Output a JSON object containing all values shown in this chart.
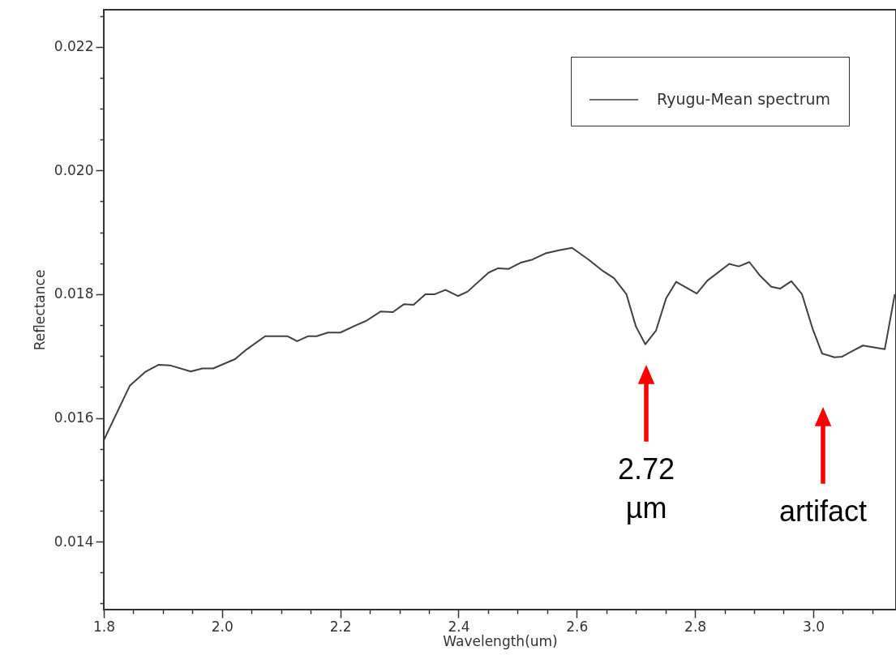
{
  "chart_data": {
    "type": "line",
    "xlabel": "Wavelength(um)",
    "ylabel": "Reflectance",
    "xlim": [
      1.8,
      3.14
    ],
    "ylim": [
      0.0129,
      0.0226
    ],
    "xticks": [
      1.8,
      {
        "value": 1.85,
        "label": null
      },
      {
        "value": 1.9,
        "label": null
      },
      {
        "value": 1.95,
        "label": null
      },
      {
        "value": 2,
        "label": "2.0"
      },
      {
        "value": 2.05,
        "label": null
      },
      {
        "value": 2.1,
        "label": null
      },
      {
        "value": 2.15,
        "label": null
      },
      2.2,
      {
        "value": 2.25,
        "label": null
      },
      {
        "value": 2.3,
        "label": null
      },
      {
        "value": 2.35,
        "label": null
      },
      2.4,
      {
        "value": 2.45,
        "label": null
      },
      {
        "value": 2.5,
        "label": null
      },
      {
        "value": 2.55,
        "label": null
      },
      2.6,
      {
        "value": 2.65,
        "label": null
      },
      {
        "value": 2.7,
        "label": null
      },
      {
        "value": 2.75,
        "label": null
      },
      2.8,
      {
        "value": 2.85,
        "label": null
      },
      {
        "value": 2.9,
        "label": null
      },
      {
        "value": 2.95,
        "label": null
      },
      {
        "value": 3,
        "label": "3.0"
      },
      {
        "value": 3.05,
        "label": null
      },
      {
        "value": 3.1,
        "label": null
      }
    ],
    "yticks": [
      {
        "value": 0.013,
        "label": null
      },
      {
        "value": 0.0135,
        "label": null
      },
      0.014,
      {
        "value": 0.0145,
        "label": null
      },
      {
        "value": 0.015,
        "label": null
      },
      {
        "value": 0.0155,
        "label": null
      },
      0.016,
      {
        "value": 0.0165,
        "label": null
      },
      {
        "value": 0.017,
        "label": null
      },
      {
        "value": 0.0175,
        "label": null
      },
      0.018,
      {
        "value": 0.0185,
        "label": null
      },
      {
        "value": 0.019,
        "label": null
      },
      {
        "value": 0.0195,
        "label": null
      },
      {
        "value": 0.02,
        "label": "0.020"
      },
      {
        "value": 0.0205,
        "label": null
      },
      {
        "value": 0.021,
        "label": null
      },
      {
        "value": 0.0215,
        "label": null
      },
      0.022,
      {
        "value": 0.0225,
        "label": null
      }
    ],
    "grid": false,
    "legend": "top right",
    "marker": "none",
    "line_style": "solid",
    "series": [
      {
        "name": "Ryugu-Mean spectrum",
        "color": "#404040",
        "x": [
          1.8,
          1.844,
          1.871,
          1.893,
          1.912,
          1.947,
          1.967,
          1.985,
          2.022,
          2.042,
          2.073,
          2.111,
          2.127,
          2.145,
          2.16,
          2.179,
          2.2,
          2.227,
          2.244,
          2.268,
          2.289,
          2.308,
          2.324,
          2.344,
          2.36,
          2.378,
          2.399,
          2.415,
          2.451,
          2.467,
          2.485,
          2.505,
          2.525,
          2.547,
          2.57,
          2.592,
          2.62,
          2.645,
          2.663,
          2.684,
          2.7,
          2.716,
          2.734,
          2.751,
          2.768,
          2.803,
          2.821,
          2.858,
          2.874,
          2.892,
          2.91,
          2.929,
          2.944,
          2.963,
          2.981,
          2.999,
          3.015,
          3.036,
          3.049,
          3.066,
          3.084,
          3.121,
          3.138
        ],
        "values": [
          0.01564,
          0.01652,
          0.01675,
          0.01686,
          0.01685,
          0.01675,
          0.0168,
          0.0168,
          0.01695,
          0.01711,
          0.01732,
          0.01732,
          0.01724,
          0.01732,
          0.01732,
          0.01738,
          0.01738,
          0.0175,
          0.01757,
          0.01772,
          0.01771,
          0.01784,
          0.01783,
          0.018,
          0.018,
          0.01807,
          0.01797,
          0.01804,
          0.01835,
          0.01842,
          0.01841,
          0.01851,
          0.01856,
          0.01866,
          0.01871,
          0.01875,
          0.01856,
          0.01837,
          0.01826,
          0.018,
          0.01748,
          0.01719,
          0.01741,
          0.01793,
          0.0182,
          0.01801,
          0.01822,
          0.01849,
          0.01845,
          0.01852,
          0.0183,
          0.01812,
          0.01809,
          0.01821,
          0.018,
          0.01744,
          0.01704,
          0.01698,
          0.01699,
          0.01708,
          0.01717,
          0.01711,
          0.018
        ]
      }
    ],
    "annotations": [
      "2.72 µm",
      "artifact"
    ]
  }
}
